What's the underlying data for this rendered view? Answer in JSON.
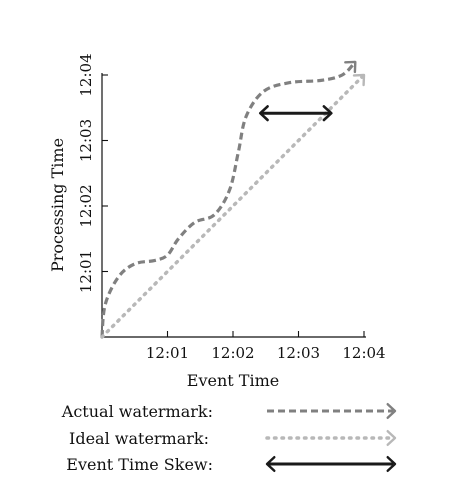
{
  "chart_data": {
    "type": "line",
    "title": "",
    "xlabel": "Event Time",
    "ylabel": "Processing Time",
    "x_ticks": [
      "12:01",
      "12:02",
      "12:03",
      "12:04"
    ],
    "y_ticks": [
      "12:01",
      "12:02",
      "12:03",
      "12:04"
    ],
    "xlim": [
      "12:00",
      "12:04"
    ],
    "ylim": [
      "12:00",
      "12:04"
    ],
    "grid": false,
    "legend_position": "bottom",
    "series": [
      {
        "name": "Actual watermark:",
        "style": "dashed",
        "arrow_end": true,
        "color": "#808080",
        "points": [
          [
            "12:00:00",
            "12:00:00"
          ],
          [
            "12:00:03",
            "12:00:30"
          ],
          [
            "12:00:15",
            "12:00:55"
          ],
          [
            "12:00:30",
            "12:01:07"
          ],
          [
            "12:00:48",
            "12:01:10"
          ],
          [
            "12:01:00",
            "12:01:15"
          ],
          [
            "12:01:10",
            "12:01:30"
          ],
          [
            "12:01:25",
            "12:01:45"
          ],
          [
            "12:01:43",
            "12:01:52"
          ],
          [
            "12:01:57",
            "12:02:15"
          ],
          [
            "12:02:05",
            "12:02:50"
          ],
          [
            "12:02:12",
            "12:03:22"
          ],
          [
            "12:02:28",
            "12:03:45"
          ],
          [
            "12:02:52",
            "12:03:53"
          ],
          [
            "12:03:20",
            "12:03:55"
          ],
          [
            "12:03:40",
            "12:04:00"
          ],
          [
            "12:03:52",
            "12:04:12"
          ]
        ]
      },
      {
        "name": "Ideal watermark:",
        "style": "dotted",
        "arrow_end": true,
        "color": "#b8b8b8",
        "points": [
          [
            "12:00:00",
            "12:00:00"
          ],
          [
            "12:04:00",
            "12:04:00"
          ]
        ]
      }
    ],
    "annotations": [
      {
        "name": "Event Time Skew:",
        "style": "solid",
        "type": "double-arrow",
        "color": "#1a1a1a",
        "from": [
          "12:02:25",
          "12:03:25"
        ],
        "to": [
          "12:03:30",
          "12:03:25"
        ]
      }
    ]
  },
  "legend": [
    {
      "label": "Actual watermark:",
      "style": "dashed",
      "color": "#808080"
    },
    {
      "label": "Ideal watermark:",
      "style": "dotted",
      "color": "#b8b8b8"
    },
    {
      "label": "Event Time Skew:",
      "style": "solid",
      "color": "#1a1a1a"
    }
  ]
}
